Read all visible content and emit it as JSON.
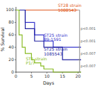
{
  "chart_data": {
    "type": "step",
    "title": "",
    "xlabel": "Days",
    "ylabel": "% Survival",
    "xlim": [
      0,
      21
    ],
    "ylim": [
      0,
      105
    ],
    "xticks": [
      0,
      5,
      10,
      15,
      20
    ],
    "yticks": [
      0,
      20,
      40,
      60,
      80,
      100
    ],
    "grid": false,
    "series": [
      {
        "color": "#e05820",
        "x": [
          0,
          20
        ],
        "values": [
          100,
          100
        ]
      },
      {
        "color": "#3535cc",
        "x": [
          0,
          3,
          6,
          9,
          12,
          21
        ],
        "values": [
          100,
          80,
          60,
          50,
          40,
          40
        ]
      },
      {
        "color": "#2020a0",
        "x": [
          0,
          3,
          6,
          9,
          15,
          21
        ],
        "values": [
          100,
          70,
          50,
          40,
          20,
          20
        ]
      },
      {
        "color": "#88bb22",
        "x": [
          0,
          1,
          2,
          3,
          5,
          6,
          8,
          9,
          12,
          21
        ],
        "values": [
          100,
          60,
          40,
          30,
          20,
          15,
          10,
          5,
          0,
          0
        ]
      }
    ],
    "annotations": [
      {
        "text": "ST28 strain\n1088543",
        "x": 13.5,
        "y": 103,
        "color": "#e05820"
      },
      {
        "text": "ST25 strain\n89-1591",
        "x": 9.0,
        "y": 56,
        "color": "#3535cc"
      },
      {
        "text": "ST25 strain\n1085543",
        "x": 9.0,
        "y": 33,
        "color": "#2020a0"
      },
      {
        "text": "ST1 strain\nP1/7",
        "x": 3.2,
        "y": 18,
        "color": "#88bb22"
      }
    ],
    "brackets": [
      {
        "x": 20.5,
        "y1": 0,
        "y2": 20,
        "text": "p<0.007"
      },
      {
        "x": 20.5,
        "y1": 20,
        "y2": 40,
        "text": "p<0.007"
      },
      {
        "x": 20.5,
        "y1": 0,
        "y2": 100,
        "text": "p<0.001"
      },
      {
        "x": 20.5,
        "y1": 40,
        "y2": 100,
        "text": "p<0.001"
      }
    ]
  }
}
